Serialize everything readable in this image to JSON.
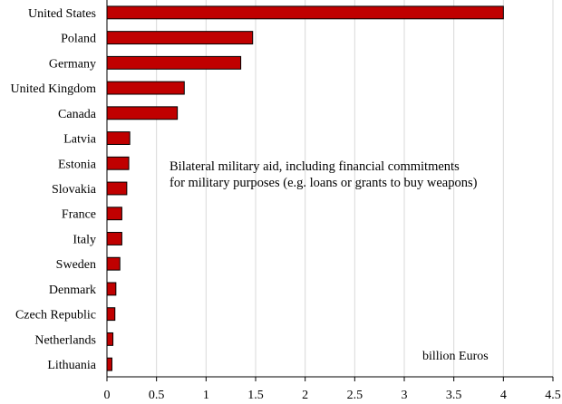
{
  "chart_data": {
    "type": "bar",
    "orientation": "horizontal",
    "categories": [
      "United States",
      "Poland",
      "Germany",
      "United Kingdom",
      "Canada",
      "Latvia",
      "Estonia",
      "Slovakia",
      "France",
      "Italy",
      "Sweden",
      "Denmark",
      "Czech Republic",
      "Netherlands",
      "Lithuania"
    ],
    "values": [
      4.0,
      1.47,
      1.35,
      0.78,
      0.71,
      0.23,
      0.22,
      0.2,
      0.15,
      0.15,
      0.13,
      0.09,
      0.08,
      0.06,
      0.05
    ],
    "xlim": [
      0,
      4.5
    ],
    "xticks": [
      0,
      0.5,
      1,
      1.5,
      2,
      2.5,
      3,
      3.5,
      4,
      4.5
    ],
    "xtick_labels": [
      "0",
      "0.5",
      "1",
      "1.5",
      "2",
      "2.5",
      "3",
      "3.5",
      "4",
      "4.5"
    ],
    "grid": "vertical",
    "annotation_lines": [
      "Bilateral military aid, including financial commitments",
      "for military purposes (e.g. loans or grants to buy weapons)"
    ],
    "unit_label": "billion Euros",
    "bar_color": "#c00000",
    "bar_edge_color": "#000000",
    "grid_color": "#d9d9d9"
  }
}
